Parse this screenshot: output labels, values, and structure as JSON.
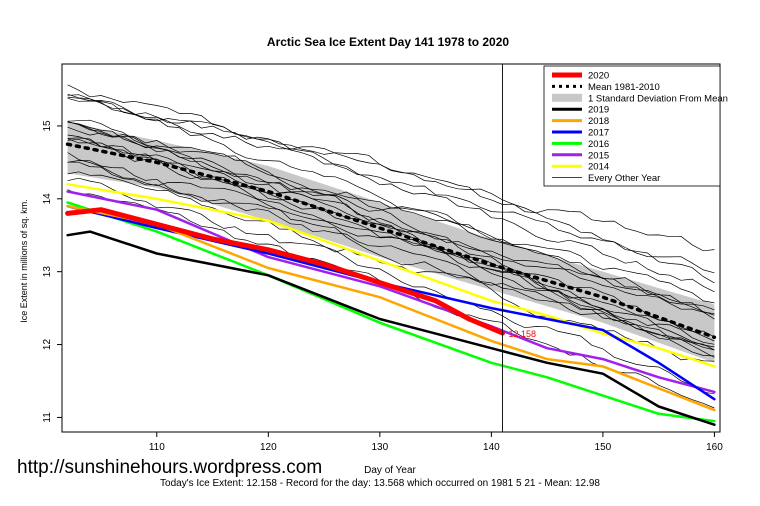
{
  "chart_data": {
    "type": "line",
    "title": "Arctic Sea Ice Extent Day 141 1978 to 2020",
    "xlabel": "Day of Year",
    "ylabel": "Ice Extent in millions of sq. km.",
    "xlim": [
      101.5,
      160.5
    ],
    "ylim": [
      10.8,
      15.85
    ],
    "xticks": [
      110,
      120,
      130,
      140,
      150,
      160
    ],
    "yticks": [
      11,
      12,
      13,
      14,
      15
    ],
    "grid": false,
    "legend_position": "top-right",
    "current_day_line": 141,
    "end_label": "12.158",
    "legend": [
      "2020",
      "Mean 1981-2010",
      "1 Standard Deviation From Mean",
      "2019",
      "2018",
      "2017",
      "2016",
      "2015",
      "2014",
      "Every Other Year"
    ],
    "colors": {
      "2020": "#ff0000",
      "mean": "#000000",
      "band": "#c8c8c8",
      "2019": "#000000",
      "2018": "#ffa500",
      "2017": "#0000ff",
      "2016": "#00ff00",
      "2015": "#a020f0",
      "2014": "#ffff00",
      "other": "#000000"
    },
    "series": [
      {
        "name": "2020",
        "x": [
          102,
          105,
          110,
          115,
          120,
          125,
          130,
          135,
          138,
          141
        ],
        "y": [
          13.8,
          13.85,
          13.65,
          13.45,
          13.3,
          13.1,
          12.85,
          12.6,
          12.35,
          12.158
        ]
      },
      {
        "name": "Mean 1981-2010",
        "x": [
          102,
          110,
          120,
          130,
          140,
          150,
          160
        ],
        "y": [
          14.75,
          14.5,
          14.1,
          13.6,
          13.1,
          12.65,
          12.1
        ]
      },
      {
        "name": "2019",
        "x": [
          102,
          104,
          110,
          115,
          120,
          125,
          130,
          135,
          140,
          145,
          150,
          155,
          160
        ],
        "y": [
          13.5,
          13.55,
          13.25,
          13.1,
          12.95,
          12.65,
          12.35,
          12.15,
          11.95,
          11.75,
          11.6,
          11.15,
          10.9
        ]
      },
      {
        "name": "2018",
        "x": [
          102,
          110,
          120,
          130,
          140,
          145,
          150,
          155,
          160
        ],
        "y": [
          13.9,
          13.65,
          13.05,
          12.65,
          12.05,
          11.8,
          11.7,
          11.4,
          11.1
        ]
      },
      {
        "name": "2017",
        "x": [
          102,
          110,
          120,
          130,
          140,
          145,
          150,
          155,
          160
        ],
        "y": [
          13.9,
          13.6,
          13.25,
          12.85,
          12.5,
          12.35,
          12.2,
          11.75,
          11.25
        ]
      },
      {
        "name": "2016",
        "x": [
          102,
          110,
          120,
          130,
          140,
          145,
          150,
          155,
          160
        ],
        "y": [
          13.95,
          13.55,
          12.95,
          12.3,
          11.75,
          11.55,
          11.3,
          11.05,
          10.95
        ]
      },
      {
        "name": "2015",
        "x": [
          102,
          110,
          120,
          130,
          140,
          145,
          150,
          155,
          160
        ],
        "y": [
          14.1,
          13.85,
          13.2,
          12.8,
          12.25,
          11.95,
          11.8,
          11.55,
          11.35
        ]
      },
      {
        "name": "2014",
        "x": [
          102,
          110,
          120,
          130,
          140,
          145,
          150,
          155,
          160
        ],
        "y": [
          14.2,
          14.0,
          13.7,
          13.15,
          12.6,
          12.4,
          12.15,
          11.95,
          11.7
        ]
      }
    ],
    "std_band": {
      "x": [
        102,
        110,
        120,
        130,
        140,
        150,
        160
      ],
      "upper": [
        15.05,
        14.8,
        14.45,
        13.95,
        13.45,
        13.0,
        12.55
      ],
      "lower": [
        14.35,
        14.15,
        13.7,
        13.2,
        12.75,
        12.3,
        11.75
      ]
    }
  },
  "watermark": "http://sunshinehours.wordpress.com",
  "footer": "Today's Ice Extent: 12.158  - Record for the day: 13.568 which occurred on 1981 5 21  - Mean: 12.98"
}
